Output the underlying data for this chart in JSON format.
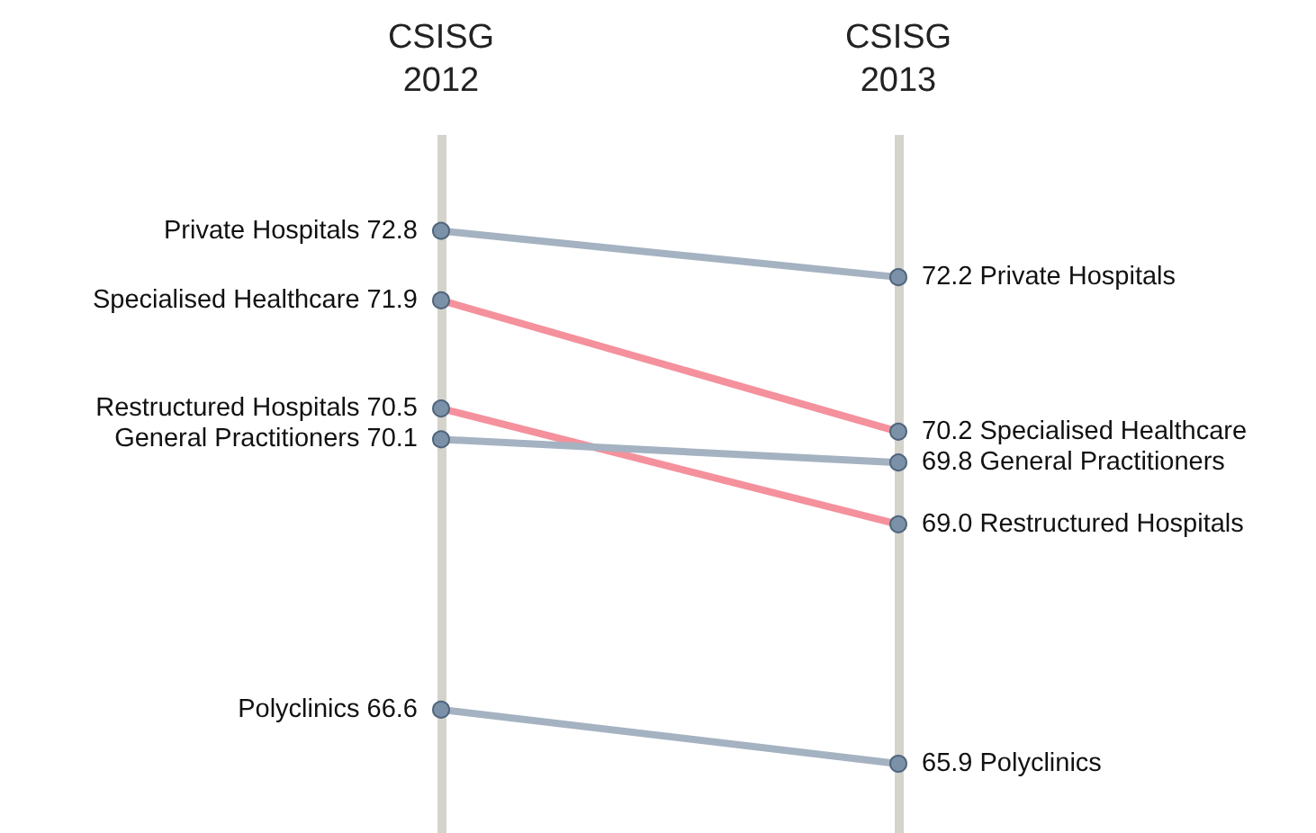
{
  "chart_data": {
    "type": "line",
    "categories": [
      "CSISG\n2012",
      "CSISG\n2013"
    ],
    "grid": "x",
    "marker": "circle",
    "line_style": "solid",
    "legend": false,
    "series": [
      {
        "name": "Private Hospitals",
        "color": "#a4b2c1",
        "values": [
          72.8,
          72.2
        ],
        "value_labels": [
          "72.8",
          "72.2"
        ]
      },
      {
        "name": "Specialised Healthcare",
        "color": "#f4919c",
        "values": [
          71.9,
          70.2
        ],
        "value_labels": [
          "71.9",
          "70.2"
        ]
      },
      {
        "name": "Restructured Hospitals",
        "color": "#f4919c",
        "values": [
          70.5,
          69.0
        ],
        "value_labels": [
          "70.5",
          "69.0"
        ]
      },
      {
        "name": "General Practitioners",
        "color": "#a4b2c1",
        "values": [
          70.1,
          69.8
        ],
        "value_labels": [
          "70.1",
          "69.8"
        ]
      },
      {
        "name": "Polyclinics",
        "color": "#a4b2c1",
        "values": [
          66.6,
          65.9
        ],
        "value_labels": [
          "66.6",
          "65.9"
        ]
      }
    ]
  }
}
